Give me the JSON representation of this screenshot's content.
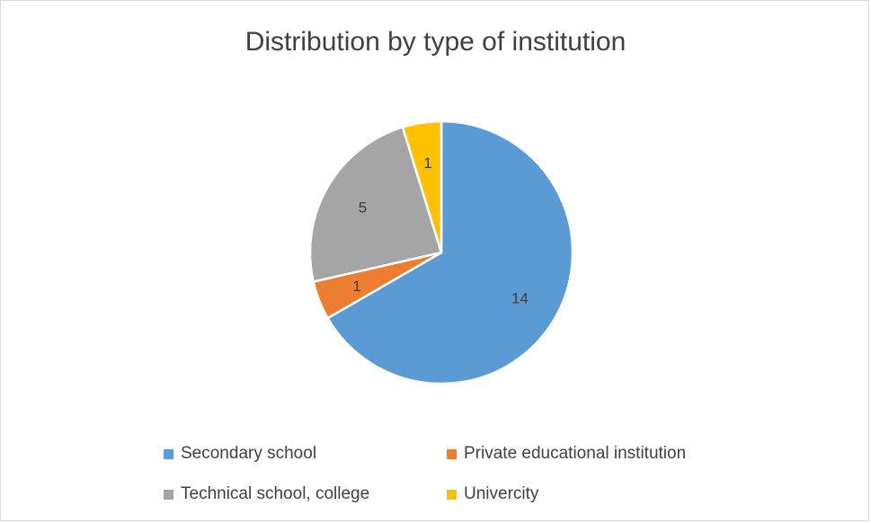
{
  "chart_data": {
    "type": "pie",
    "title": "Distribution by type of institution",
    "categories": [
      "Secondary school",
      "Private educational institution",
      "Technical school, college",
      "Univercity"
    ],
    "values": [
      14,
      1,
      5,
      1
    ],
    "colors": [
      "#5b9bd5",
      "#ed7d31",
      "#a5a5a5",
      "#ffc000"
    ],
    "data_labels": [
      "14",
      "1",
      "5",
      "1"
    ],
    "start_angle_deg": 0,
    "direction": "clockwise",
    "legend_position": "bottom"
  },
  "legend": {
    "items": [
      {
        "label": "Secondary school",
        "color": "#5b9bd5"
      },
      {
        "label": "Private educational institution",
        "color": "#ed7d31"
      },
      {
        "label": "Technical school, college",
        "color": "#a5a5a5"
      },
      {
        "label": "Univercity",
        "color": "#ffc000"
      }
    ]
  }
}
